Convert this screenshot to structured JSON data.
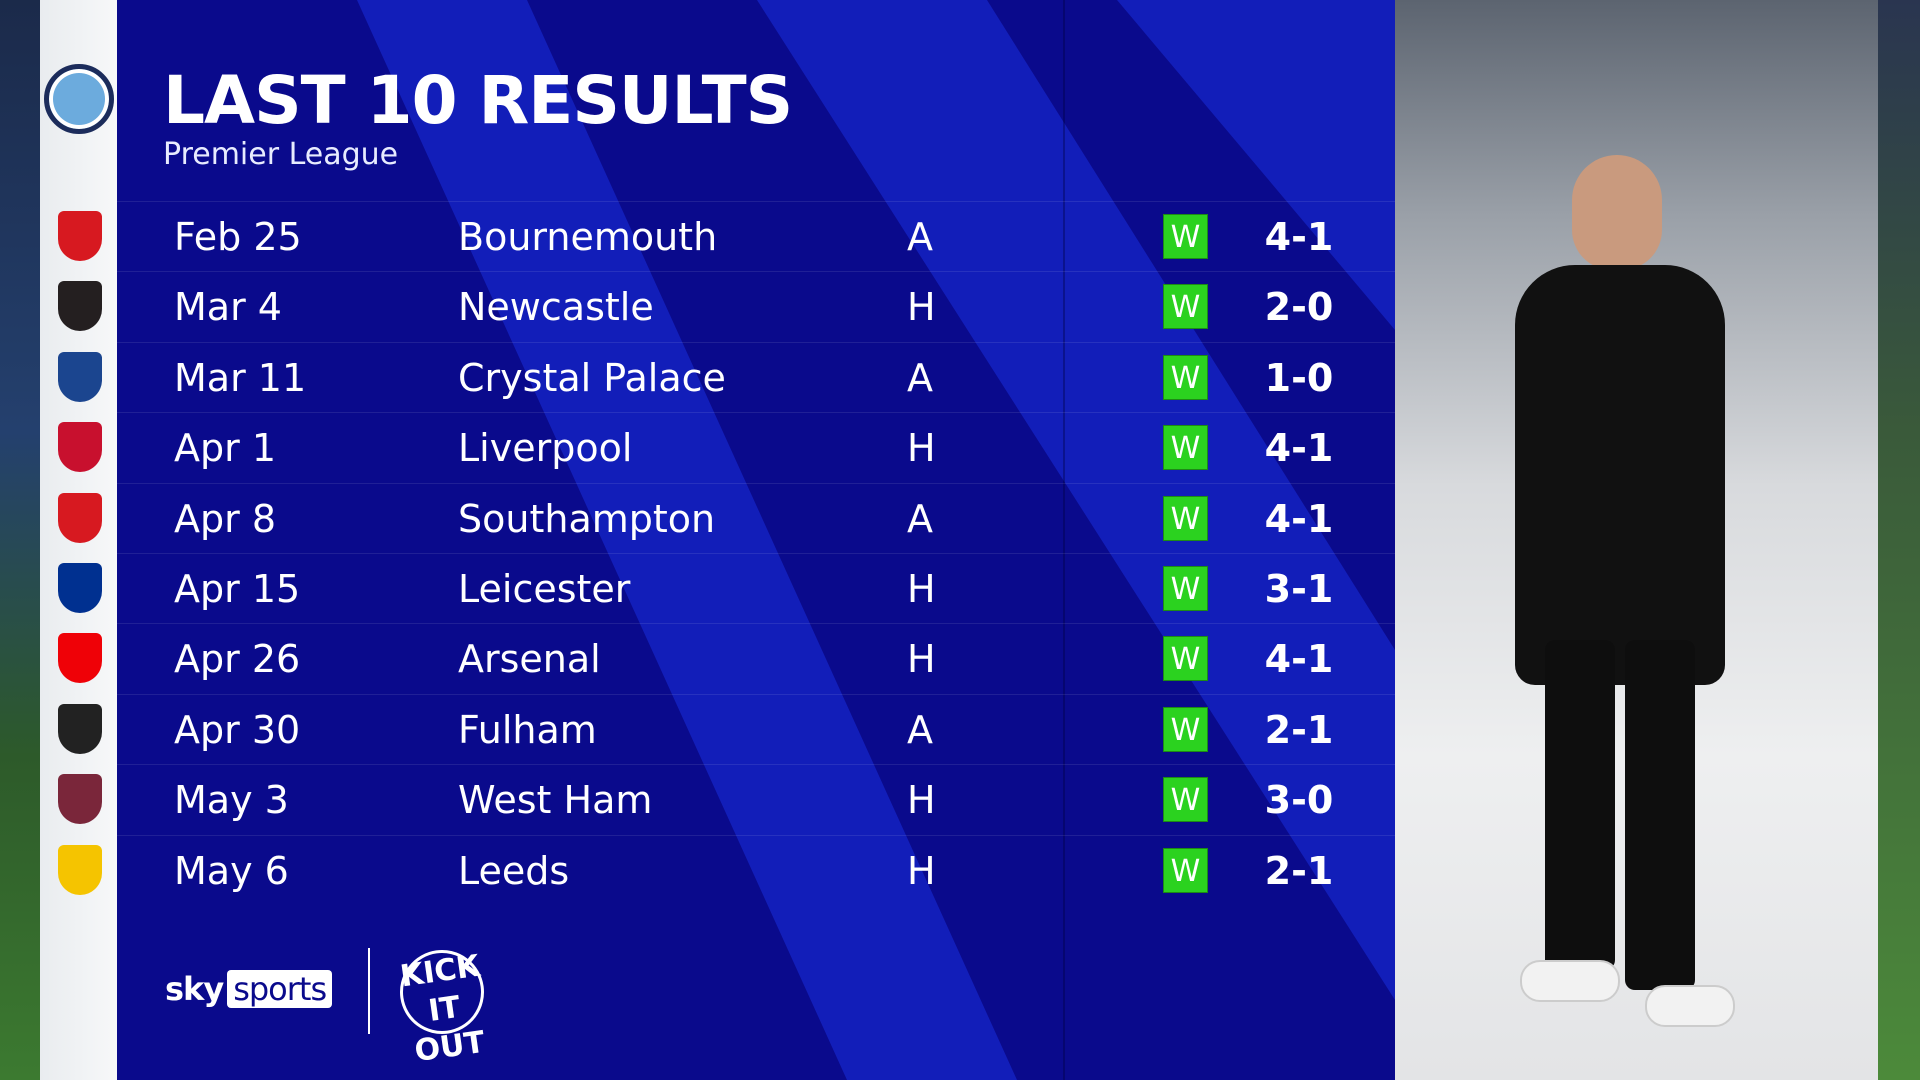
{
  "header": {
    "title": "LAST 10 RESULTS",
    "subtitle": "Premier League"
  },
  "team_crest": "manchester-city-crest",
  "results": [
    {
      "date": "Feb 25",
      "opponent": "Bournemouth",
      "venue": "A",
      "outcome": "W",
      "score": "4-1",
      "crest_color": "#d71920"
    },
    {
      "date": "Mar 4",
      "opponent": "Newcastle",
      "venue": "H",
      "outcome": "W",
      "score": "2-0",
      "crest_color": "#241f20"
    },
    {
      "date": "Mar 11",
      "opponent": "Crystal Palace",
      "venue": "A",
      "outcome": "W",
      "score": "1-0",
      "crest_color": "#1b458f"
    },
    {
      "date": "Apr 1",
      "opponent": "Liverpool",
      "venue": "H",
      "outcome": "W",
      "score": "4-1",
      "crest_color": "#c8102e"
    },
    {
      "date": "Apr 8",
      "opponent": "Southampton",
      "venue": "A",
      "outcome": "W",
      "score": "4-1",
      "crest_color": "#d71920"
    },
    {
      "date": "Apr 15",
      "opponent": "Leicester",
      "venue": "H",
      "outcome": "W",
      "score": "3-1",
      "crest_color": "#003090"
    },
    {
      "date": "Apr 26",
      "opponent": "Arsenal",
      "venue": "H",
      "outcome": "W",
      "score": "4-1",
      "crest_color": "#ef0107"
    },
    {
      "date": "Apr 30",
      "opponent": "Fulham",
      "venue": "A",
      "outcome": "W",
      "score": "2-1",
      "crest_color": "#222222"
    },
    {
      "date": "May 3",
      "opponent": "West Ham",
      "venue": "H",
      "outcome": "W",
      "score": "3-0",
      "crest_color": "#7a263a"
    },
    {
      "date": "May 6",
      "opponent": "Leeds",
      "venue": "H",
      "outcome": "W",
      "score": "2-1",
      "crest_color": "#f5c400"
    }
  ],
  "branding": {
    "sky": "sky",
    "sports": "sports",
    "kick_it_out": "KICK IT OUT"
  },
  "colors": {
    "panel": "#0a0a8c",
    "win": "#2bd21f"
  }
}
